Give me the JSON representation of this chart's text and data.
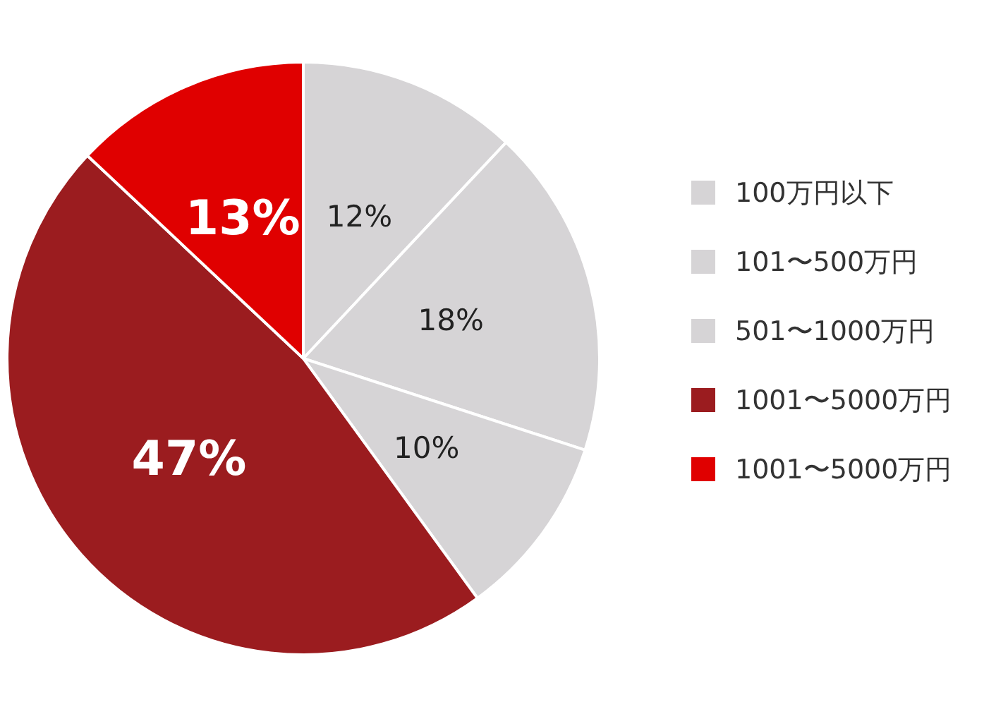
{
  "chart_data": {
    "type": "pie",
    "categories": [
      "100万円以下",
      "101〜500万円",
      "501〜1000万円",
      "1001〜5000万円",
      "1001〜5000万円"
    ],
    "values": [
      12,
      18,
      10,
      47,
      13
    ],
    "colors": [
      "#d6d4d6",
      "#d6d4d6",
      "#d6d4d6",
      "#9b1c1f",
      "#e00000"
    ],
    "value_labels": [
      "12%",
      "18%",
      "10%",
      "47%",
      "13%"
    ],
    "legend": "right"
  }
}
